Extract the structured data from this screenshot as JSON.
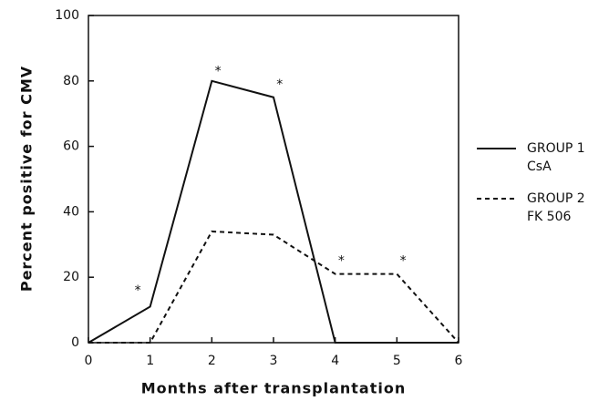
{
  "chart_data": {
    "type": "line",
    "x_label": "Months after transplantation",
    "y_label": "Percent positive for CMV",
    "x": [
      0,
      1,
      2,
      3,
      4,
      5,
      6
    ],
    "series": [
      {
        "name": "GROUP 1",
        "description": "CsA",
        "color": "#111111",
        "dashed": false,
        "values": [
          0,
          11,
          80,
          75,
          0,
          0,
          0
        ]
      },
      {
        "name": "GROUP 2",
        "description": "FK 506",
        "color": "#111111",
        "dashed": true,
        "values": [
          0,
          0,
          34,
          33,
          21,
          21,
          0
        ]
      }
    ],
    "annotations": [
      {
        "text": "*",
        "x": 0.8,
        "y": 17
      },
      {
        "text": "*",
        "x": 2.1,
        "y": 84
      },
      {
        "text": "*",
        "x": 3.1,
        "y": 80
      },
      {
        "text": "*",
        "x": 4.1,
        "y": 26
      },
      {
        "text": "*",
        "x": 5.1,
        "y": 26
      }
    ],
    "xlim": [
      0,
      6
    ],
    "xticks": [
      0,
      1,
      2,
      3,
      4,
      5,
      6
    ],
    "ylim": [
      0,
      100
    ],
    "yticks": [
      0,
      20,
      40,
      60,
      80,
      100
    ],
    "legend": "right"
  }
}
